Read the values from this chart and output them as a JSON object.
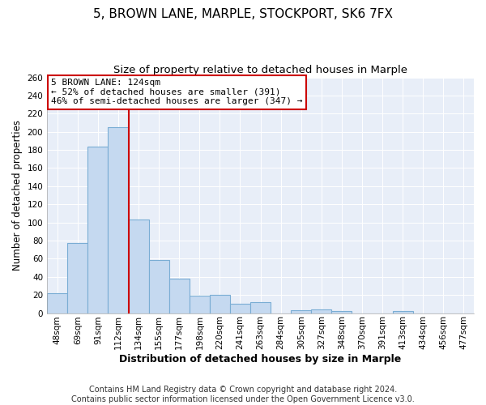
{
  "title": "5, BROWN LANE, MARPLE, STOCKPORT, SK6 7FX",
  "subtitle": "Size of property relative to detached houses in Marple",
  "xlabel": "Distribution of detached houses by size in Marple",
  "ylabel": "Number of detached properties",
  "bar_labels": [
    "48sqm",
    "69sqm",
    "91sqm",
    "112sqm",
    "134sqm",
    "155sqm",
    "177sqm",
    "198sqm",
    "220sqm",
    "241sqm",
    "263sqm",
    "284sqm",
    "305sqm",
    "327sqm",
    "348sqm",
    "370sqm",
    "391sqm",
    "413sqm",
    "434sqm",
    "456sqm",
    "477sqm"
  ],
  "bar_values": [
    22,
    77,
    184,
    205,
    103,
    59,
    38,
    19,
    20,
    10,
    12,
    0,
    3,
    4,
    2,
    0,
    0,
    2,
    0,
    0,
    0
  ],
  "bar_color": "#c5d9f0",
  "bar_edge_color": "#7aadd4",
  "background_color": "#e8eef8",
  "grid_color": "#ffffff",
  "fig_background": "#ffffff",
  "ylim": [
    0,
    260
  ],
  "yticks": [
    0,
    20,
    40,
    60,
    80,
    100,
    120,
    140,
    160,
    180,
    200,
    220,
    240,
    260
  ],
  "red_line_color": "#cc0000",
  "annotation_box_text": [
    "5 BROWN LANE: 124sqm",
    "← 52% of detached houses are smaller (391)",
    "46% of semi-detached houses are larger (347) →"
  ],
  "annotation_box_color": "#cc0000",
  "footer_lines": [
    "Contains HM Land Registry data © Crown copyright and database right 2024.",
    "Contains public sector information licensed under the Open Government Licence v3.0."
  ],
  "title_fontsize": 11,
  "subtitle_fontsize": 9.5,
  "xlabel_fontsize": 9,
  "ylabel_fontsize": 8.5,
  "tick_fontsize": 7.5,
  "footer_fontsize": 7,
  "ann_fontsize": 8
}
